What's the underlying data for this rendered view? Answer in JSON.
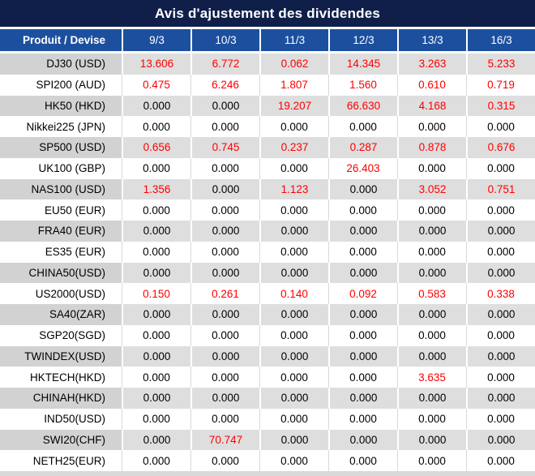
{
  "title": "Avis d'ajustement des dividendes",
  "table": {
    "product_header": "Produit / Devise",
    "date_headers": [
      "9/3",
      "10/3",
      "11/3",
      "12/3",
      "13/3",
      "16/3"
    ],
    "rows": [
      {
        "product": "DJ30 (USD)",
        "values": [
          "13.606",
          "6.772",
          "0.062",
          "14.345",
          "3.263",
          "5.233"
        ]
      },
      {
        "product": "SPI200 (AUD)",
        "values": [
          "0.475",
          "6.246",
          "1.807",
          "1.560",
          "0.610",
          "0.719"
        ]
      },
      {
        "product": "HK50 (HKD)",
        "values": [
          "0.000",
          "0.000",
          "19.207",
          "66.630",
          "4.168",
          "0.315"
        ]
      },
      {
        "product": "Nikkei225 (JPN)",
        "values": [
          "0.000",
          "0.000",
          "0.000",
          "0.000",
          "0.000",
          "0.000"
        ]
      },
      {
        "product": "SP500 (USD)",
        "values": [
          "0.656",
          "0.745",
          "0.237",
          "0.287",
          "0.878",
          "0.676"
        ]
      },
      {
        "product": "UK100 (GBP)",
        "values": [
          "0.000",
          "0.000",
          "0.000",
          "26.403",
          "0.000",
          "0.000"
        ]
      },
      {
        "product": "NAS100 (USD)",
        "values": [
          "1.356",
          "0.000",
          "1.123",
          "0.000",
          "3.052",
          "0.751"
        ]
      },
      {
        "product": "EU50 (EUR)",
        "values": [
          "0.000",
          "0.000",
          "0.000",
          "0.000",
          "0.000",
          "0.000"
        ]
      },
      {
        "product": "FRA40 (EUR)",
        "values": [
          "0.000",
          "0.000",
          "0.000",
          "0.000",
          "0.000",
          "0.000"
        ]
      },
      {
        "product": "ES35 (EUR)",
        "values": [
          "0.000",
          "0.000",
          "0.000",
          "0.000",
          "0.000",
          "0.000"
        ]
      },
      {
        "product": "CHINA50(USD)",
        "values": [
          "0.000",
          "0.000",
          "0.000",
          "0.000",
          "0.000",
          "0.000"
        ]
      },
      {
        "product": "US2000(USD)",
        "values": [
          "0.150",
          "0.261",
          "0.140",
          "0.092",
          "0.583",
          "0.338"
        ]
      },
      {
        "product": "SA40(ZAR)",
        "values": [
          "0.000",
          "0.000",
          "0.000",
          "0.000",
          "0.000",
          "0.000"
        ]
      },
      {
        "product": "SGP20(SGD)",
        "values": [
          "0.000",
          "0.000",
          "0.000",
          "0.000",
          "0.000",
          "0.000"
        ]
      },
      {
        "product": "TWINDEX(USD)",
        "values": [
          "0.000",
          "0.000",
          "0.000",
          "0.000",
          "0.000",
          "0.000"
        ]
      },
      {
        "product": "HKTECH(HKD)",
        "values": [
          "0.000",
          "0.000",
          "0.000",
          "0.000",
          "3.635",
          "0.000"
        ]
      },
      {
        "product": "CHINAH(HKD)",
        "values": [
          "0.000",
          "0.000",
          "0.000",
          "0.000",
          "0.000",
          "0.000"
        ]
      },
      {
        "product": "IND50(USD)",
        "values": [
          "0.000",
          "0.000",
          "0.000",
          "0.000",
          "0.000",
          "0.000"
        ]
      },
      {
        "product": "SWI20(CHF)",
        "values": [
          "0.000",
          "70.747",
          "0.000",
          "0.000",
          "0.000",
          "0.000"
        ]
      },
      {
        "product": "NETH25(EUR)",
        "values": [
          "0.000",
          "0.000",
          "0.000",
          "0.000",
          "0.000",
          "0.000"
        ]
      }
    ]
  },
  "colors": {
    "title_bg": "#101f4a",
    "header_bg": "#1c509f",
    "header_text": "#ffffff",
    "nonzero_value_red": "#fe0000",
    "zero_value_black": "#000000",
    "gray_row_product_bg": "#d2d2d2",
    "gray_row_value_bg": "#dedede",
    "white_row_bg": "#ffffff",
    "bottom_strip": "#d9d9d9"
  }
}
